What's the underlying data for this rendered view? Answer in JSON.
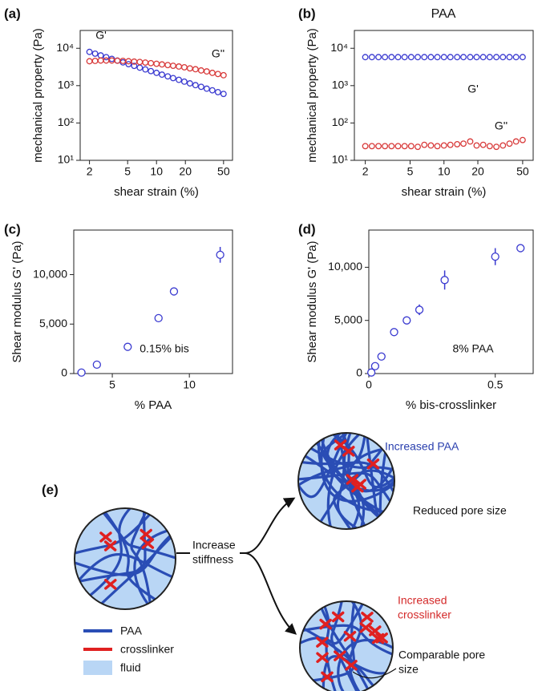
{
  "chart_data": [
    {
      "type": "scatter",
      "panel_label": "(a)",
      "xlabel": "shear strain (%)",
      "ylabel": "mechanical property (Pa)",
      "xscale": "log",
      "yscale": "log",
      "xlim": [
        1.6,
        62
      ],
      "ylim": [
        10,
        30000
      ],
      "xticks": [
        2,
        5,
        10,
        20,
        50
      ],
      "yticks": [
        {
          "value": 10,
          "label": "10¹"
        },
        {
          "value": 100,
          "label": "10²"
        },
        {
          "value": 1000,
          "label": "10³"
        },
        {
          "value": 10000,
          "label": "10⁴"
        }
      ],
      "x": [
        2,
        2.29,
        2.62,
        2.99,
        3.42,
        3.91,
        4.47,
        5.11,
        5.85,
        6.69,
        7.65,
        8.74,
        10,
        11.4,
        13.1,
        14.9,
        17.1,
        19.5,
        22.3,
        25.5,
        29.2,
        33.4,
        38.2,
        43.7,
        50
      ],
      "series": [
        {
          "name": "G'",
          "color": "#3a3ad0",
          "values": [
            8000,
            7180,
            6450,
            5790,
            5200,
            4670,
            4190,
            3760,
            3380,
            3030,
            2720,
            2450,
            2200,
            1970,
            1770,
            1590,
            1430,
            1280,
            1150,
            1030,
            930,
            830,
            750,
            670,
            600
          ]
        },
        {
          "name": "G''",
          "color": "#d83a3a",
          "values": [
            4500,
            4600,
            4700,
            4700,
            4700,
            4650,
            4600,
            4500,
            4400,
            4300,
            4150,
            4000,
            3850,
            3700,
            3550,
            3400,
            3250,
            3100,
            2900,
            2750,
            2550,
            2400,
            2200,
            2050,
            1900
          ]
        }
      ]
    },
    {
      "type": "scatter",
      "panel_label": "(b)",
      "title": "PAA",
      "xlabel": "shear strain (%)",
      "ylabel": "mechanical property (Pa)",
      "xscale": "log",
      "yscale": "log",
      "xlim": [
        1.6,
        62
      ],
      "ylim": [
        10,
        30000
      ],
      "xticks": [
        2,
        5,
        10,
        20,
        50
      ],
      "yticks": [
        {
          "value": 10,
          "label": "10¹"
        },
        {
          "value": 100,
          "label": "10²"
        },
        {
          "value": 1000,
          "label": "10³"
        },
        {
          "value": 10000,
          "label": "10⁴"
        }
      ],
      "x": [
        2,
        2.29,
        2.62,
        2.99,
        3.42,
        3.91,
        4.47,
        5.11,
        5.85,
        6.69,
        7.65,
        8.74,
        10,
        11.4,
        13.1,
        14.9,
        17.1,
        19.5,
        22.3,
        25.5,
        29.2,
        33.4,
        38.2,
        43.7,
        50
      ],
      "series": [
        {
          "name": "G'",
          "color": "#3a3ad0",
          "values": [
            5800,
            5800,
            5800,
            5800,
            5800,
            5800,
            5800,
            5800,
            5800,
            5800,
            5800,
            5800,
            5800,
            5800,
            5800,
            5800,
            5800,
            5800,
            5800,
            5800,
            5800,
            5800,
            5800,
            5800,
            5800
          ]
        },
        {
          "name": "G''",
          "color": "#d83a3a",
          "values": [
            24,
            24,
            24,
            24,
            24,
            24,
            24,
            24,
            23,
            26,
            25,
            24,
            25,
            26,
            27,
            28,
            32,
            25,
            26,
            24,
            23,
            25,
            28,
            32,
            35
          ]
        }
      ]
    },
    {
      "type": "errorbar",
      "panel_label": "(c)",
      "xlabel": "% PAA",
      "ylabel": "Shear modulus G' (Pa)",
      "annotation": "0.15% bis",
      "xlim": [
        2.5,
        12.8
      ],
      "ylim": [
        0,
        14500
      ],
      "xticks": [
        5,
        10
      ],
      "yticks": [
        0,
        {
          "value": 5000,
          "label": "5,000"
        },
        {
          "value": 10000,
          "label": "10,000"
        }
      ],
      "x": [
        3,
        4,
        6,
        8,
        9,
        12
      ],
      "series": [
        {
          "color": "#3a3ad0",
          "values": [
            100,
            900,
            2700,
            5600,
            8300,
            12000
          ],
          "errors": [
            100,
            100,
            200,
            200,
            150,
            800
          ]
        }
      ]
    },
    {
      "type": "errorbar",
      "panel_label": "(d)",
      "xlabel": "% bis-crosslinker",
      "ylabel": "Shear modulus G' (Pa)",
      "annotation": "8% PAA",
      "xlim": [
        0,
        0.65
      ],
      "ylim": [
        0,
        13500
      ],
      "xticks": [
        0,
        0.5
      ],
      "yticks": [
        0,
        {
          "value": 5000,
          "label": "5,000"
        },
        {
          "value": 10000,
          "label": "10,000"
        }
      ],
      "x": [
        0.01,
        0.025,
        0.05,
        0.1,
        0.15,
        0.2,
        0.3,
        0.5,
        0.6
      ],
      "series": [
        {
          "color": "#3a3ad0",
          "values": [
            100,
            700,
            1600,
            3900,
            5000,
            6000,
            8800,
            11000,
            11800
          ],
          "errors": [
            100,
            150,
            300,
            200,
            200,
            500,
            900,
            800,
            300
          ]
        }
      ]
    }
  ],
  "diagram": {
    "panel_label": "(e)",
    "arrow_label": [
      "Increase",
      "stiffness"
    ],
    "top_label": "Increased PAA",
    "top_note": "Reduced pore size",
    "bottom_label": [
      "Increased",
      "crosslinker"
    ],
    "bottom_note": [
      "Comparable pore",
      "size"
    ],
    "legend": [
      "PAA",
      "crosslinker",
      "fluid"
    ]
  }
}
